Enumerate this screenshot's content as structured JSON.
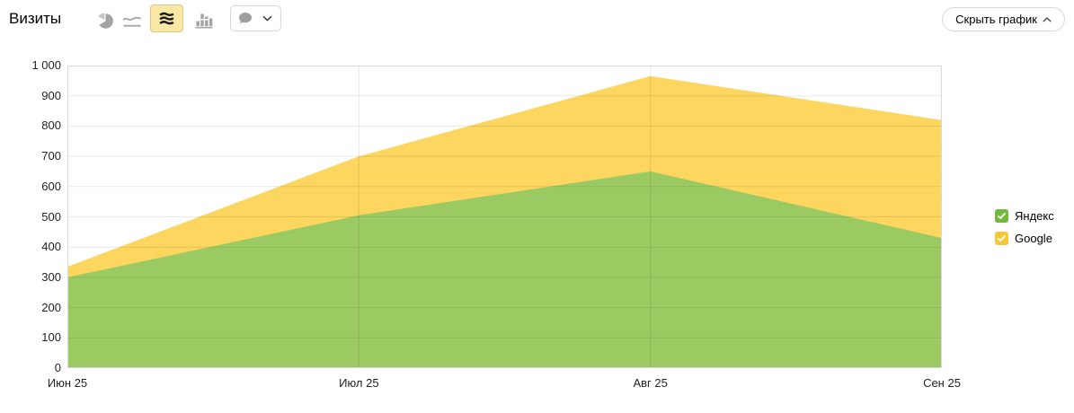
{
  "header": {
    "title": "Визиты",
    "toolbar": {
      "chart_type_icons": [
        {
          "key": "pie-chart",
          "selected": false
        },
        {
          "key": "line-chart",
          "selected": false
        },
        {
          "key": "stacked-area-chart",
          "selected": true
        },
        {
          "key": "bar-chart",
          "selected": false
        }
      ],
      "annotations_dropdown": {
        "icon": "comment-icon",
        "chevron": "down"
      }
    },
    "hide_chart_button": {
      "label": "Скрыть график"
    }
  },
  "chart_data": {
    "type": "area",
    "stacked": true,
    "title": "Визиты",
    "x": [
      "Июн 25",
      "Июл 25",
      "Авг 25",
      "Сен 25"
    ],
    "series": [
      {
        "name": "Яндекс",
        "key": "yandex",
        "color": "#9cca62",
        "values": [
          300,
          505,
          650,
          430
        ]
      },
      {
        "name": "Google",
        "key": "google",
        "color": "#fcd65e",
        "values": [
          35,
          195,
          315,
          390
        ]
      }
    ],
    "stacked_totals": [
      335,
      700,
      965,
      820
    ],
    "xlabel": "",
    "ylabel": "",
    "ylim": [
      0,
      1000
    ],
    "ytick_step": 100,
    "ytick_labels": [
      "0",
      "100",
      "200",
      "300",
      "400",
      "500",
      "600",
      "700",
      "800",
      "900",
      "1 000"
    ],
    "grid": true,
    "legend_position": "right"
  },
  "legend": {
    "items": [
      {
        "label": "Яндекс",
        "key": "yandex",
        "checked": true,
        "checkbox_color": "#72ba3d"
      },
      {
        "label": "Google",
        "key": "google",
        "checked": true,
        "checkbox_color": "#f5c838"
      }
    ]
  }
}
